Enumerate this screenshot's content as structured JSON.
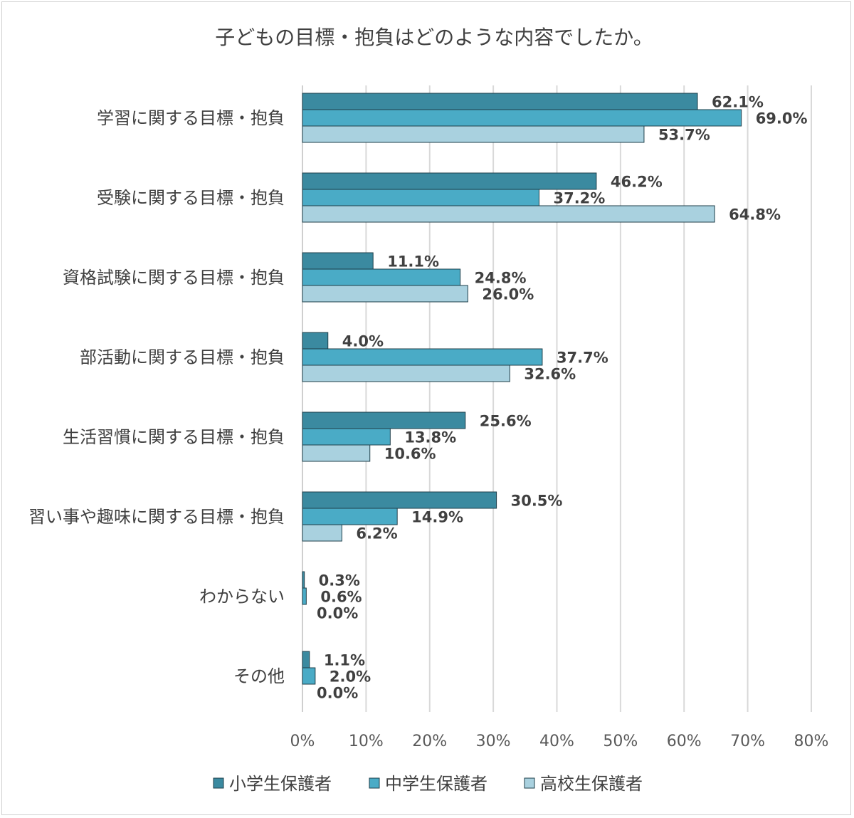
{
  "chart_data": {
    "type": "bar",
    "orientation": "horizontal",
    "title": "子どもの目標・抱負はどのような内容でしたか。",
    "categories": [
      "学習に関する目標・抱負",
      "受験に関する目標・抱負",
      "資格試験に関する目標・抱負",
      "部活動に関する目標・抱負",
      "生活習慣に関する目標・抱負",
      "習い事や趣味に関する目標・抱負",
      "わからない",
      "その他"
    ],
    "series": [
      {
        "name": "小学生保護者",
        "color": "#3b8aa0",
        "values": [
          62.1,
          46.2,
          11.1,
          4.0,
          25.6,
          30.5,
          0.3,
          1.1
        ],
        "labels": [
          "62.1%",
          "46.2%",
          "11.1%",
          "4.0%",
          "25.6%",
          "30.5%",
          "0.3%",
          "1.1%"
        ]
      },
      {
        "name": "中学生保護者",
        "color": "#4aabc6",
        "values": [
          69.0,
          37.2,
          24.8,
          37.7,
          13.8,
          14.9,
          0.6,
          2.0
        ],
        "labels": [
          "69.0%",
          "37.2%",
          "24.8%",
          "37.7%",
          "13.8%",
          "14.9%",
          "0.6%",
          "2.0%"
        ]
      },
      {
        "name": "高校生保護者",
        "color": "#a9d1df",
        "values": [
          53.7,
          64.8,
          26.0,
          32.6,
          10.6,
          6.2,
          0.0,
          0.0
        ],
        "labels": [
          "53.7%",
          "64.8%",
          "26.0%",
          "32.6%",
          "10.6%",
          "6.2%",
          "0.0%",
          "0.0%"
        ]
      }
    ],
    "xlim": [
      0,
      80
    ],
    "xticks": [
      0,
      10,
      20,
      30,
      40,
      50,
      60,
      70,
      80
    ],
    "xtick_labels": [
      "0%",
      "10%",
      "20%",
      "30%",
      "40%",
      "50%",
      "60%",
      "70%",
      "80%"
    ],
    "grid": true,
    "legend_position": "bottom"
  }
}
